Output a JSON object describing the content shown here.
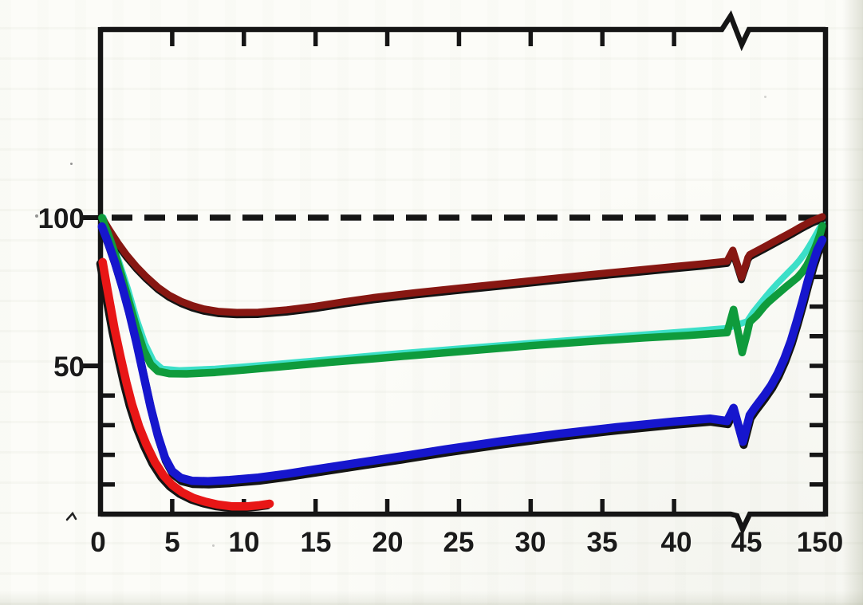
{
  "figure": {
    "description": "Scanned line chart: percent recovery curves vs time, y reference dashed line at 100, x axis 0-45 with axis break then 150",
    "background_color": "#fcfcf8",
    "frame_color": "#151515"
  },
  "chart_data": {
    "type": "line",
    "title": "",
    "xlabel": "",
    "ylabel": "",
    "x_axis": {
      "labels": [
        {
          "text": "0",
          "value": 0,
          "dx": -3
        },
        {
          "text": "5",
          "value": 5,
          "dx": 0
        },
        {
          "text": "10",
          "value": 10,
          "dx": 0
        },
        {
          "text": "15",
          "value": 15,
          "dx": 0
        },
        {
          "text": "20",
          "value": 20,
          "dx": 0
        },
        {
          "text": "25",
          "value": 25,
          "dx": 0
        },
        {
          "text": "30",
          "value": 30,
          "dx": 0
        },
        {
          "text": "35",
          "value": 35,
          "dx": 0
        },
        {
          "text": "40",
          "value": 40,
          "dx": 3
        },
        {
          "text": "45",
          "value": 45,
          "dx": 1
        },
        {
          "text": "150",
          "value": 150,
          "dx": -3
        }
      ],
      "tick_values": [
        5,
        10,
        15,
        20,
        25,
        30,
        35,
        40
      ],
      "break_between": [
        45,
        150
      ],
      "range_linear": [
        0,
        45
      ]
    },
    "y_axis": {
      "labels": [
        {
          "text": "100",
          "value": 100
        },
        {
          "text": "50",
          "value": 50
        }
      ],
      "minor_ticks_left": [
        10,
        20,
        30,
        40
      ],
      "major_ticks_left_outward": [
        50,
        100
      ],
      "minor_ticks_right": [
        10,
        20,
        30,
        40,
        50,
        60,
        70,
        80
      ],
      "range": [
        0,
        108
      ],
      "grid": false
    },
    "reference_line": {
      "value": 100,
      "style": "dashed",
      "color": "#151515"
    },
    "legend": null,
    "series": [
      {
        "name": "cyan",
        "color": "#3cdfc8",
        "width": 8,
        "points": [
          [
            0.2,
            100
          ],
          [
            0.7,
            93
          ],
          [
            1.3,
            85
          ],
          [
            1.9,
            76
          ],
          [
            2.5,
            66
          ],
          [
            3.1,
            57.5
          ],
          [
            3.7,
            51.5
          ],
          [
            4.3,
            49
          ],
          [
            5.5,
            48.5
          ],
          [
            8,
            49
          ],
          [
            12,
            50.5
          ],
          [
            16,
            52.2
          ],
          [
            20,
            53.9
          ],
          [
            25,
            55.8
          ],
          [
            30,
            57.7
          ],
          [
            35,
            59.5
          ],
          [
            40,
            61.3
          ],
          [
            43.7,
            62.7
          ],
          [
            47,
            65
          ],
          [
            55,
            68
          ],
          [
            63,
            70.5
          ],
          [
            72,
            73.2
          ],
          [
            80,
            75.5
          ],
          [
            88,
            77.7
          ],
          [
            96,
            79.7
          ],
          [
            104,
            81.7
          ],
          [
            112,
            83.7
          ],
          [
            119,
            85.7
          ],
          [
            126,
            88
          ],
          [
            132,
            90.3
          ],
          [
            138,
            92.8
          ],
          [
            143,
            95
          ],
          [
            147,
            96.8
          ],
          [
            150,
            98.4
          ]
        ]
      },
      {
        "name": "dark-red",
        "color": "#871712",
        "width": 9,
        "points": [
          [
            0.1,
            100
          ],
          [
            0.6,
            96
          ],
          [
            1.2,
            91.5
          ],
          [
            1.8,
            87.5
          ],
          [
            2.5,
            83.5
          ],
          [
            3.2,
            80
          ],
          [
            4.0,
            76.5
          ],
          [
            4.8,
            73.8
          ],
          [
            5.6,
            71.8
          ],
          [
            6.4,
            70.3
          ],
          [
            7.2,
            69.2
          ],
          [
            8.2,
            68.4
          ],
          [
            9.5,
            68.0
          ],
          [
            11,
            68.1
          ],
          [
            13,
            68.9
          ],
          [
            15,
            70.1
          ],
          [
            17,
            71.6
          ],
          [
            19,
            73
          ],
          [
            22,
            74.7
          ],
          [
            25,
            76.2
          ],
          [
            28,
            77.7
          ],
          [
            31,
            79.2
          ],
          [
            34,
            80.7
          ],
          [
            37,
            82.1
          ],
          [
            40,
            83.5
          ],
          [
            42,
            84.4
          ],
          [
            43.7,
            85.3
          ],
          [
            44.1,
            89
          ],
          [
            44.7,
            79.8
          ],
          [
            46,
            84.8
          ],
          [
            48,
            86.5
          ],
          [
            50.5,
            87.5
          ],
          [
            57,
            88.4
          ],
          [
            65,
            89.4
          ],
          [
            74,
            90.6
          ],
          [
            83,
            91.8
          ],
          [
            92,
            93
          ],
          [
            101,
            94.2
          ],
          [
            110,
            95.4
          ],
          [
            119,
            96.7
          ],
          [
            128,
            97.9
          ],
          [
            136,
            98.9
          ],
          [
            143,
            99.6
          ],
          [
            150,
            100.3
          ]
        ]
      },
      {
        "name": "green",
        "color": "#0f9b3c",
        "width": 9.5,
        "points": [
          [
            0.1,
            100
          ],
          [
            0.5,
            95
          ],
          [
            1.0,
            88
          ],
          [
            1.5,
            80
          ],
          [
            2.0,
            71.5
          ],
          [
            2.5,
            63
          ],
          [
            3.0,
            55.5
          ],
          [
            3.5,
            50.5
          ],
          [
            4.0,
            48.2
          ],
          [
            4.8,
            47.4
          ],
          [
            6,
            47.3
          ],
          [
            8,
            47.8
          ],
          [
            10,
            48.6
          ],
          [
            13,
            49.9
          ],
          [
            16,
            51.2
          ],
          [
            19,
            52.4
          ],
          [
            22,
            53.6
          ],
          [
            26,
            55.2
          ],
          [
            30,
            56.8
          ],
          [
            34,
            58.2
          ],
          [
            38,
            59.5
          ],
          [
            41,
            60.3
          ],
          [
            43.7,
            61.2
          ],
          [
            44.15,
            69
          ],
          [
            44.75,
            54.5
          ],
          [
            47,
            61
          ],
          [
            50.5,
            64.8
          ],
          [
            60,
            67
          ],
          [
            70,
            70
          ],
          [
            76,
            71.5
          ],
          [
            83,
            73
          ],
          [
            90,
            74.5
          ],
          [
            100,
            76.6
          ],
          [
            108,
            78.2
          ],
          [
            116,
            79.8
          ],
          [
            123,
            81.8
          ],
          [
            129,
            84
          ],
          [
            135,
            87
          ],
          [
            140,
            89.8
          ],
          [
            144,
            92.3
          ],
          [
            147,
            94.5
          ],
          [
            150,
            97.2
          ]
        ]
      },
      {
        "name": "blue",
        "color": "#1616cd",
        "width": 10.5,
        "points": [
          [
            0.1,
            97
          ],
          [
            0.5,
            92
          ],
          [
            1.0,
            85
          ],
          [
            1.5,
            77
          ],
          [
            2.0,
            68
          ],
          [
            2.5,
            58
          ],
          [
            3.0,
            47
          ],
          [
            3.5,
            36
          ],
          [
            4.0,
            26.5
          ],
          [
            4.5,
            19
          ],
          [
            5.0,
            14.5
          ],
          [
            5.6,
            12.2
          ],
          [
            6.4,
            11.2
          ],
          [
            7.5,
            11.1
          ],
          [
            9,
            11.5
          ],
          [
            11,
            12.3
          ],
          [
            13,
            13.6
          ],
          [
            15,
            15.1
          ],
          [
            18,
            17.3
          ],
          [
            21,
            19.5
          ],
          [
            24,
            21.8
          ],
          [
            28,
            24.6
          ],
          [
            32,
            27.1
          ],
          [
            36,
            29.3
          ],
          [
            40,
            31.2
          ],
          [
            42.5,
            32.2
          ],
          [
            43.7,
            31.4
          ],
          [
            44.15,
            35.8
          ],
          [
            44.8,
            24.4
          ],
          [
            47,
            30
          ],
          [
            50.5,
            33.4
          ],
          [
            56,
            35.4
          ],
          [
            63,
            37.7
          ],
          [
            71,
            40.3
          ],
          [
            80,
            43.5
          ],
          [
            89,
            47.5
          ],
          [
            98,
            52.5
          ],
          [
            107,
            58.5
          ],
          [
            115,
            65
          ],
          [
            123,
            72
          ],
          [
            130,
            78.5
          ],
          [
            137,
            84.5
          ],
          [
            143,
            89
          ],
          [
            147,
            91
          ],
          [
            150,
            92.5
          ]
        ]
      },
      {
        "name": "red",
        "color": "#e81616",
        "width": 10.5,
        "points": [
          [
            0.15,
            85
          ],
          [
            0.4,
            78
          ],
          [
            0.7,
            70
          ],
          [
            1.0,
            62
          ],
          [
            1.4,
            53
          ],
          [
            1.8,
            44.5
          ],
          [
            2.2,
            37
          ],
          [
            2.7,
            29.5
          ],
          [
            3.2,
            23.5
          ],
          [
            3.8,
            17.5
          ],
          [
            4.4,
            13
          ],
          [
            5.0,
            9.8
          ],
          [
            5.7,
            7.3
          ],
          [
            6.5,
            5.4
          ],
          [
            7.3,
            4.2
          ],
          [
            8.2,
            3.2
          ],
          [
            9.2,
            2.6
          ],
          [
            10.2,
            2.6
          ],
          [
            11.1,
            3.0
          ],
          [
            11.8,
            3.5
          ]
        ]
      }
    ]
  }
}
